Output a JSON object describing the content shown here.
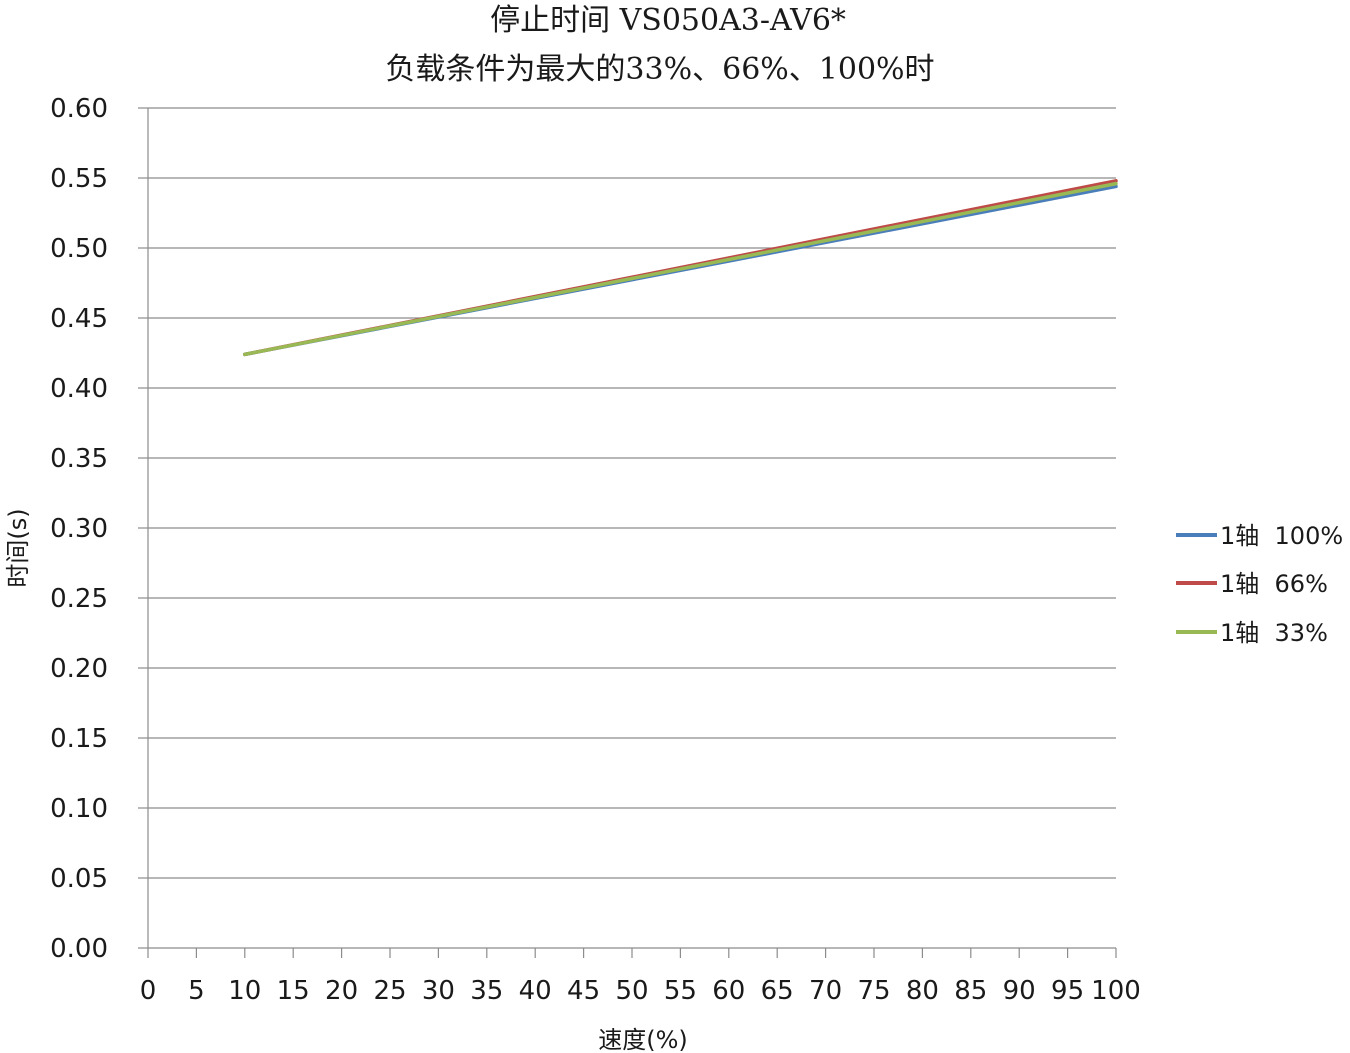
{
  "chart_data": {
    "type": "line",
    "title": [
      "停止时间 VS050A3-AV6*",
      "负载条件为最大的33%、66%、100%时"
    ],
    "xlabel": "速度(%)",
    "ylabel": "时间(s)",
    "xlim": [
      0,
      100
    ],
    "ylim": [
      0,
      0.6
    ],
    "x_ticks": [
      "0",
      "5",
      "10",
      "15",
      "20",
      "25",
      "30",
      "35",
      "40",
      "45",
      "50",
      "55",
      "60",
      "65",
      "70",
      "75",
      "80",
      "85",
      "90",
      "95",
      "100"
    ],
    "y_ticks": [
      "0.00",
      "0.05",
      "0.10",
      "0.15",
      "0.20",
      "0.25",
      "0.30",
      "0.35",
      "0.40",
      "0.45",
      "0.50",
      "0.55",
      "0.60"
    ],
    "grid": "horizontal",
    "legend_position": "right",
    "x": [
      10,
      100
    ],
    "series": [
      {
        "name": "1轴  100%",
        "color": "#4a7ebb",
        "values": [
          0.424,
          0.544
        ]
      },
      {
        "name": "1轴  66%",
        "color": "#be4b48",
        "values": [
          0.424,
          0.548
        ]
      },
      {
        "name": "1轴  33%",
        "color": "#98b954",
        "values": [
          0.424,
          0.546
        ]
      }
    ]
  }
}
